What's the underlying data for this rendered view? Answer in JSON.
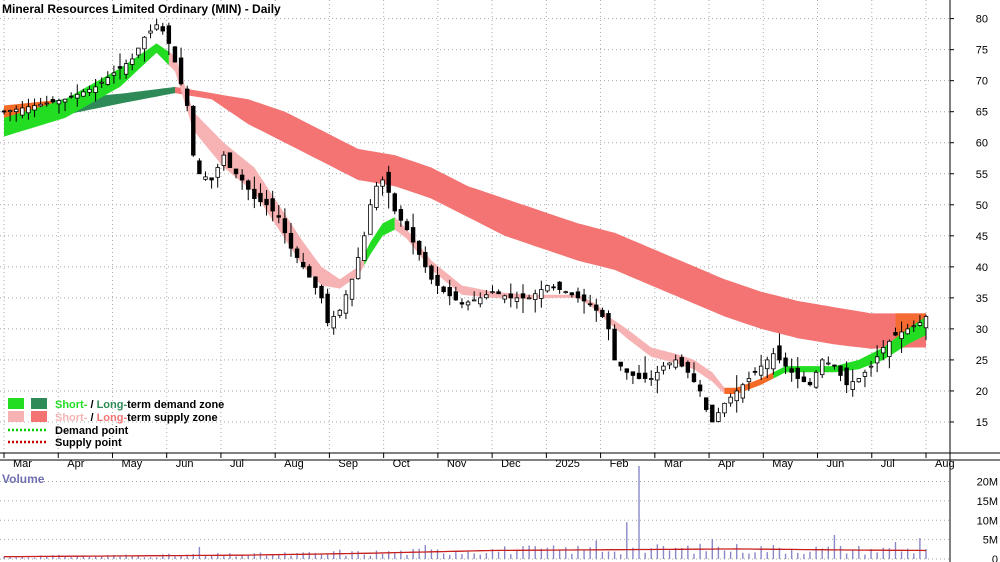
{
  "chart_data": {
    "type": "candlestick",
    "title": "Mineral Resources Limited Ordinary (MIN) - Daily",
    "volume_label": "Volume",
    "x_months": [
      "Mar",
      "Apr",
      "May",
      "Jun",
      "Jul",
      "Aug",
      "Sep",
      "Oct",
      "Nov",
      "Dec",
      "2025",
      "Feb",
      "Mar",
      "Apr",
      "May",
      "Jun",
      "Jul",
      "Aug"
    ],
    "y_ticks": [
      15,
      20,
      25,
      30,
      35,
      40,
      45,
      50,
      55,
      60,
      65,
      70,
      75,
      80
    ],
    "y_range": [
      10,
      83
    ],
    "volume_ticks": [
      "0",
      "5M",
      "10M",
      "15M",
      "20M"
    ],
    "volume_range": [
      0,
      24
    ],
    "price_path": [
      [
        0,
        65
      ],
      [
        5,
        66
      ],
      [
        10,
        67
      ],
      [
        15,
        69
      ],
      [
        19,
        72
      ],
      [
        21,
        73.5
      ],
      [
        23,
        77
      ],
      [
        25,
        79
      ],
      [
        26,
        78
      ],
      [
        27,
        76
      ],
      [
        28,
        73
      ],
      [
        30,
        66
      ],
      [
        31,
        58
      ],
      [
        32,
        55
      ],
      [
        34,
        54
      ],
      [
        36,
        58
      ],
      [
        37,
        56
      ],
      [
        39,
        54
      ],
      [
        41,
        51
      ],
      [
        43,
        50
      ],
      [
        45,
        48
      ],
      [
        47,
        43
      ],
      [
        49,
        40
      ],
      [
        52,
        35
      ],
      [
        53,
        31
      ],
      [
        55,
        33
      ],
      [
        57,
        38
      ],
      [
        59,
        45
      ],
      [
        60,
        50
      ],
      [
        61,
        53
      ],
      [
        62,
        54
      ],
      [
        63,
        52
      ],
      [
        64,
        49
      ],
      [
        66,
        46
      ],
      [
        68,
        42
      ],
      [
        70,
        38
      ],
      [
        72,
        36
      ],
      [
        75,
        34
      ],
      [
        78,
        35
      ],
      [
        80,
        36
      ],
      [
        83,
        35
      ],
      [
        86,
        35
      ],
      [
        89,
        37
      ],
      [
        92,
        36
      ],
      [
        94,
        35
      ],
      [
        96,
        34
      ],
      [
        98,
        32
      ],
      [
        99,
        30
      ],
      [
        100,
        25
      ],
      [
        102,
        23
      ],
      [
        104,
        22
      ],
      [
        106,
        22
      ],
      [
        108,
        24
      ],
      [
        110,
        25
      ],
      [
        112,
        23
      ],
      [
        114,
        20
      ],
      [
        115,
        17
      ],
      [
        116,
        15
      ],
      [
        118,
        18
      ],
      [
        120,
        20
      ],
      [
        122,
        22
      ],
      [
        124,
        24
      ],
      [
        126,
        26
      ],
      [
        128,
        24
      ],
      [
        130,
        22
      ],
      [
        132,
        21
      ],
      [
        134,
        25
      ],
      [
        136,
        24
      ],
      [
        138,
        21
      ],
      [
        140,
        22
      ],
      [
        142,
        24
      ],
      [
        144,
        27
      ],
      [
        146,
        29
      ],
      [
        148,
        30
      ],
      [
        150,
        31
      ],
      [
        151,
        32
      ]
    ],
    "short_term_zone_upper": [
      [
        0,
        64
      ],
      [
        10,
        67
      ],
      [
        19,
        72
      ],
      [
        25,
        76
      ],
      [
        28,
        74
      ],
      [
        31,
        65
      ],
      [
        36,
        60
      ],
      [
        41,
        56
      ],
      [
        45,
        50
      ],
      [
        49,
        44
      ],
      [
        52,
        40
      ],
      [
        55,
        38
      ],
      [
        58,
        40
      ],
      [
        60,
        44
      ],
      [
        62,
        47
      ],
      [
        64,
        48
      ],
      [
        66,
        46
      ],
      [
        70,
        41
      ],
      [
        75,
        37
      ],
      [
        80,
        36
      ],
      [
        86,
        35.5
      ],
      [
        90,
        35.5
      ],
      [
        94,
        35.5
      ],
      [
        97,
        34
      ],
      [
        99,
        32
      ],
      [
        102,
        30
      ],
      [
        106,
        27
      ],
      [
        110,
        26
      ],
      [
        113,
        25
      ],
      [
        116,
        23
      ],
      [
        118,
        20.5
      ],
      [
        120,
        20.5
      ],
      [
        124,
        22
      ],
      [
        128,
        24
      ],
      [
        132,
        24
      ],
      [
        136,
        24
      ],
      [
        140,
        25
      ],
      [
        144,
        27
      ],
      [
        148,
        30
      ],
      [
        151,
        32
      ]
    ],
    "short_term_zone_lower": [
      [
        0,
        61
      ],
      [
        10,
        64
      ],
      [
        19,
        69
      ],
      [
        25,
        74.5
      ],
      [
        28,
        71.5
      ],
      [
        31,
        62
      ],
      [
        36,
        56
      ],
      [
        41,
        52
      ],
      [
        45,
        46
      ],
      [
        49,
        40
      ],
      [
        52,
        37
      ],
      [
        55,
        36.5
      ],
      [
        58,
        38.5
      ],
      [
        60,
        42
      ],
      [
        62,
        45
      ],
      [
        64,
        46
      ],
      [
        66,
        44.5
      ],
      [
        70,
        39.5
      ],
      [
        75,
        35.5
      ],
      [
        80,
        35
      ],
      [
        86,
        34.8
      ],
      [
        90,
        35
      ],
      [
        94,
        35
      ],
      [
        97,
        33
      ],
      [
        99,
        31
      ],
      [
        102,
        28.5
      ],
      [
        106,
        25.5
      ],
      [
        110,
        24.5
      ],
      [
        113,
        23.5
      ],
      [
        116,
        21.5
      ],
      [
        118,
        19.5
      ],
      [
        120,
        19.5
      ],
      [
        124,
        21
      ],
      [
        128,
        23
      ],
      [
        132,
        23
      ],
      [
        136,
        23
      ],
      [
        140,
        23.5
      ],
      [
        144,
        25
      ],
      [
        148,
        27.5
      ],
      [
        151,
        29
      ]
    ],
    "long_term_zone_upper": [
      [
        0,
        66
      ],
      [
        10,
        67
      ],
      [
        20,
        68
      ],
      [
        28,
        69
      ],
      [
        34,
        68
      ],
      [
        40,
        67
      ],
      [
        46,
        65
      ],
      [
        52,
        62
      ],
      [
        58,
        59
      ],
      [
        64,
        58
      ],
      [
        70,
        56
      ],
      [
        76,
        53
      ],
      [
        82,
        51
      ],
      [
        88,
        49
      ],
      [
        94,
        47
      ],
      [
        100,
        45.5
      ],
      [
        106,
        43
      ],
      [
        112,
        40.5
      ],
      [
        118,
        38
      ],
      [
        124,
        36
      ],
      [
        130,
        34.5
      ],
      [
        136,
        33.5
      ],
      [
        142,
        32.5
      ],
      [
        148,
        32.5
      ],
      [
        151,
        32.5
      ]
    ],
    "long_term_zone_lower": [
      [
        0,
        63
      ],
      [
        10,
        64.5
      ],
      [
        20,
        66.5
      ],
      [
        28,
        68
      ],
      [
        34,
        67
      ],
      [
        40,
        63
      ],
      [
        46,
        60
      ],
      [
        52,
        57
      ],
      [
        58,
        54
      ],
      [
        64,
        53
      ],
      [
        70,
        51
      ],
      [
        76,
        48
      ],
      [
        82,
        45
      ],
      [
        88,
        43
      ],
      [
        94,
        41
      ],
      [
        100,
        39.5
      ],
      [
        106,
        37
      ],
      [
        112,
        34.5
      ],
      [
        118,
        32
      ],
      [
        124,
        30
      ],
      [
        130,
        28.5
      ],
      [
        136,
        27.5
      ],
      [
        142,
        26.8
      ],
      [
        148,
        27
      ],
      [
        151,
        27
      ]
    ],
    "volume_baseline": [
      [
        0,
        0.6
      ],
      [
        20,
        0.8
      ],
      [
        40,
        1.0
      ],
      [
        60,
        1.5
      ],
      [
        80,
        2.2
      ],
      [
        100,
        2.4
      ],
      [
        120,
        2.6
      ],
      [
        140,
        2.3
      ],
      [
        151,
        2.2
      ]
    ],
    "volume_spikes": [
      [
        32,
        3.1
      ],
      [
        55,
        2.4
      ],
      [
        69,
        3.6
      ],
      [
        97,
        4.8
      ],
      [
        102,
        9.5
      ],
      [
        104,
        24
      ],
      [
        116,
        5.2
      ],
      [
        136,
        6.2
      ],
      [
        146,
        4.4
      ],
      [
        150,
        5.4
      ]
    ],
    "legend": {
      "demand_zone_short": "Short-",
      "demand_zone_sep": " / ",
      "demand_zone_long": "Long-",
      "demand_zone_rest": "term demand zone",
      "supply_zone_short": "Short-",
      "supply_zone_sep": " / ",
      "supply_zone_long": "Long-",
      "supply_zone_rest": "term supply zone",
      "demand_point": "Demand point",
      "supply_point": "Supply point"
    },
    "colors": {
      "short_demand": "#22dd22",
      "long_demand": "#2e8b57",
      "short_supply": "#f7b3b3",
      "long_supply": "#f47474",
      "transition": "#f46a26",
      "grid": "#a8a8a8",
      "volume_bar": "#8888c8",
      "volume_line": "#c81e1e",
      "demand_point": "#00cc00",
      "supply_point": "#cc0000"
    }
  }
}
